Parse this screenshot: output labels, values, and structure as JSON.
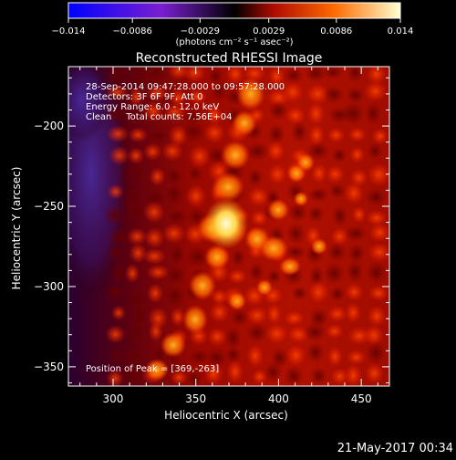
{
  "chart_data": {
    "type": "heatmap",
    "title": "Reconstructed RHESSI Image",
    "xlabel": "Heliocentric X (arcsec)",
    "ylabel": "Heliocentric Y (arcsec)",
    "xlim": [
      273,
      467
    ],
    "ylim": [
      -362,
      -163
    ],
    "x_ticks": [
      300,
      350,
      400,
      450
    ],
    "y_ticks": [
      -350,
      -300,
      -250,
      -200
    ],
    "x_tick_labels": [
      "300",
      "350",
      "400",
      "450"
    ],
    "y_tick_labels": [
      "−350",
      "−300",
      "−250",
      "−200"
    ],
    "colorbar": {
      "range": [
        -0.014,
        0.014
      ],
      "ticks": [
        -0.014,
        -0.0086,
        -0.0029,
        0.0029,
        0.0086,
        0.014
      ],
      "tick_labels": [
        "−0.014",
        "−0.0086",
        "−0.0029",
        "0.0029",
        "0.0086",
        "0.014"
      ],
      "unit_label": "(photons cm⁻² s⁻¹ asec⁻²)",
      "colors": [
        "#0000ff",
        "#7a1fd0",
        "#000000",
        "#c01000",
        "#ff8a00",
        "#ffffc8"
      ]
    },
    "annotations": [
      "28-Sep-2014 09:47:28.000 to 09:57:28.000",
      "Detectors: 3F 6F 9F, Att 0",
      "Energy Range: 6.0 - 12.0 keV",
      "Clean     Total counts: 7.56E+04"
    ],
    "peak_label": "Position of Peak = [369,-263]",
    "peak_position": [
      369,
      -263
    ],
    "grid": false
  },
  "footer_date": "21-May-2017 00:34"
}
